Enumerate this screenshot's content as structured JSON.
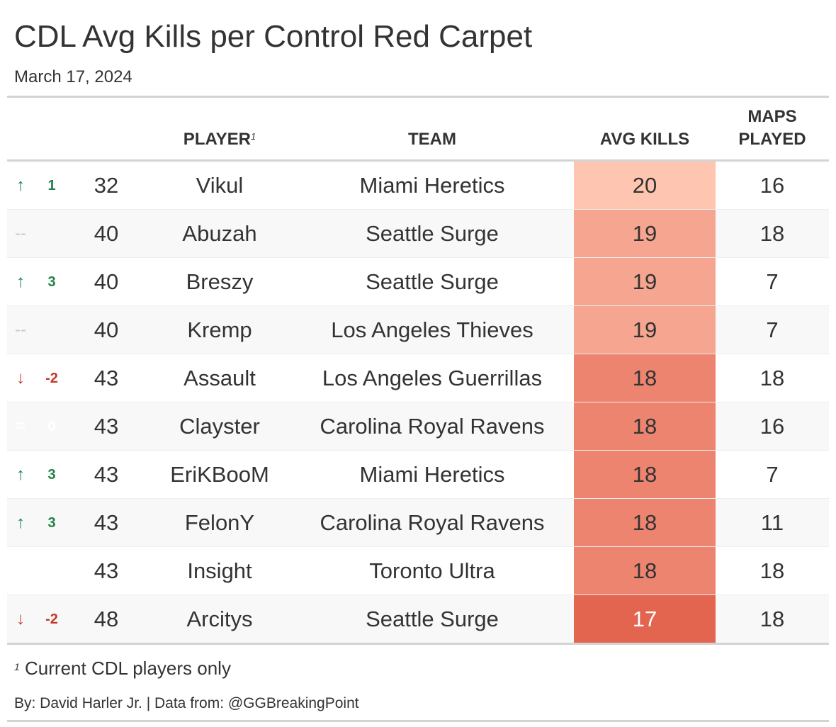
{
  "title": "CDL Avg Kills per Control Red Carpet",
  "subtitle": "March 17, 2024",
  "columns": {
    "player": "PLAYER",
    "player_footnote_mark": "1",
    "team": "TEAM",
    "avg_kills": "AVG KILLS",
    "maps_played_line1": "MAPS",
    "maps_played_line2": "PLAYED"
  },
  "colors": {
    "up": "#1e8449",
    "down": "#c0392b",
    "neutral": "#c8c8c8",
    "kills_low": "#fec5b0",
    "kills_high": "#e3644f"
  },
  "rows": [
    {
      "direction": "up",
      "arrow": "↑",
      "change": "1",
      "rank": "32",
      "player": "Vikul",
      "team": "Miami Heretics",
      "avg_kills": "20",
      "maps_played": "16"
    },
    {
      "direction": "none",
      "arrow": "--",
      "change": "",
      "rank": "40",
      "player": "Abuzah",
      "team": "Seattle Surge",
      "avg_kills": "19",
      "maps_played": "18"
    },
    {
      "direction": "up",
      "arrow": "↑",
      "change": "3",
      "rank": "40",
      "player": "Breszy",
      "team": "Seattle Surge",
      "avg_kills": "19",
      "maps_played": "7"
    },
    {
      "direction": "none",
      "arrow": "--",
      "change": "",
      "rank": "40",
      "player": "Kremp",
      "team": "Los Angeles Thieves",
      "avg_kills": "19",
      "maps_played": "7"
    },
    {
      "direction": "down",
      "arrow": "↓",
      "change": "-2",
      "rank": "43",
      "player": "Assault",
      "team": "Los Angeles Guerrillas",
      "avg_kills": "18",
      "maps_played": "18"
    },
    {
      "direction": "same",
      "arrow": "=",
      "change": "0",
      "rank": "43",
      "player": "Clayster",
      "team": "Carolina Royal Ravens",
      "avg_kills": "18",
      "maps_played": "16"
    },
    {
      "direction": "up",
      "arrow": "↑",
      "change": "3",
      "rank": "43",
      "player": "EriKBooM",
      "team": "Miami Heretics",
      "avg_kills": "18",
      "maps_played": "7"
    },
    {
      "direction": "up",
      "arrow": "↑",
      "change": "3",
      "rank": "43",
      "player": "FelonY",
      "team": "Carolina Royal Ravens",
      "avg_kills": "18",
      "maps_played": "11"
    },
    {
      "direction": "blank",
      "arrow": "",
      "change": "",
      "rank": "43",
      "player": "Insight",
      "team": "Toronto Ultra",
      "avg_kills": "18",
      "maps_played": "18"
    },
    {
      "direction": "down",
      "arrow": "↓",
      "change": "-2",
      "rank": "48",
      "player": "Arcitys",
      "team": "Seattle Surge",
      "avg_kills": "17",
      "maps_played": "18"
    }
  ],
  "chart_data": {
    "type": "table",
    "title": "CDL Avg Kills per Control Red Carpet",
    "subtitle": "March 17, 2024",
    "columns": [
      "PLAYER",
      "TEAM",
      "AVG KILLS",
      "MAPS PLAYED"
    ],
    "rank_change": [
      1,
      null,
      3,
      null,
      -2,
      0,
      3,
      3,
      null,
      -2
    ],
    "rank": [
      32,
      40,
      40,
      40,
      43,
      43,
      43,
      43,
      43,
      48
    ],
    "player": [
      "Vikul",
      "Abuzah",
      "Breszy",
      "Kremp",
      "Assault",
      "Clayster",
      "EriKBooM",
      "FelonY",
      "Insight",
      "Arcitys"
    ],
    "team": [
      "Miami Heretics",
      "Seattle Surge",
      "Seattle Surge",
      "Los Angeles Thieves",
      "Los Angeles Guerrillas",
      "Carolina Royal Ravens",
      "Miami Heretics",
      "Carolina Royal Ravens",
      "Toronto Ultra",
      "Seattle Surge"
    ],
    "avg_kills": [
      20,
      19,
      19,
      19,
      18,
      18,
      18,
      18,
      18,
      17
    ],
    "maps_played": [
      16,
      18,
      7,
      7,
      18,
      16,
      7,
      11,
      18,
      18
    ]
  },
  "footnote": {
    "mark": "1",
    "text": "Current CDL players only"
  },
  "credit": "By: David Harler Jr. | Data from: @GGBreakingPoint"
}
